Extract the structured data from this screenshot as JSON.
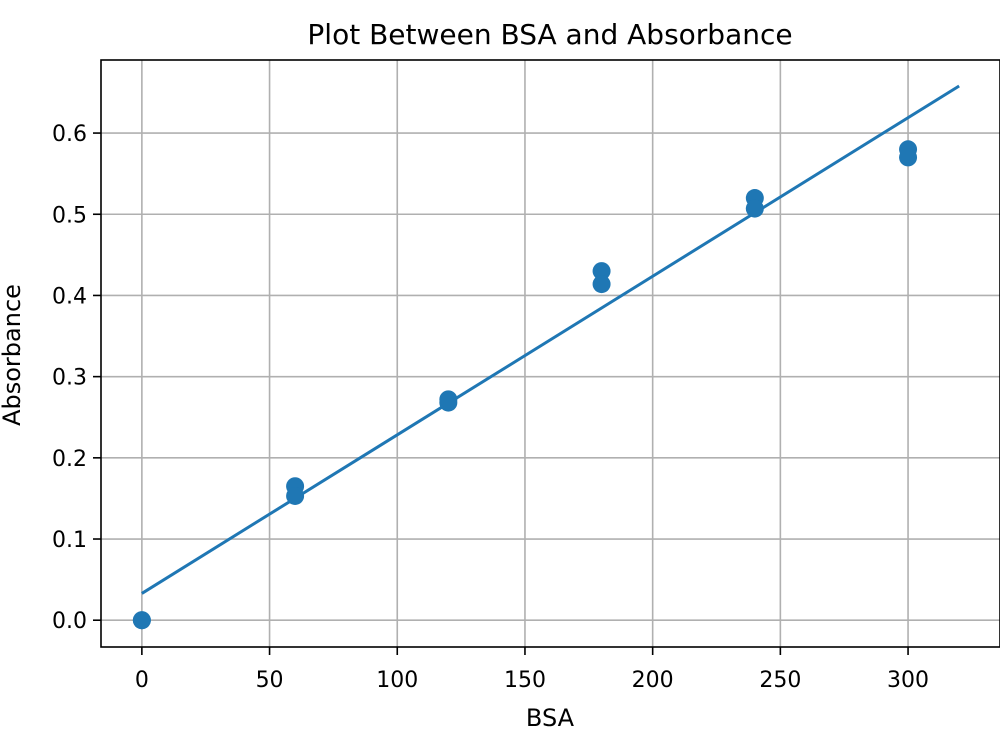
{
  "chart_data": {
    "type": "scatter",
    "title": "Plot Between BSA and Absorbance",
    "xlabel": "BSA",
    "ylabel": "Absorbance",
    "xlim": [
      -16,
      336
    ],
    "ylim": [
      -0.033,
      0.69
    ],
    "grid": true,
    "x_ticks": [
      0,
      50,
      100,
      150,
      200,
      250,
      300
    ],
    "y_ticks": [
      0.0,
      0.1,
      0.2,
      0.3,
      0.4,
      0.5,
      0.6
    ],
    "x_tick_labels": [
      "0",
      "50",
      "100",
      "150",
      "200",
      "250",
      "300"
    ],
    "y_tick_labels": [
      "0.0",
      "0.1",
      "0.2",
      "0.3",
      "0.4",
      "0.5",
      "0.6"
    ],
    "series": [
      {
        "kind": "scatter",
        "color": "#1f77b4",
        "points": [
          {
            "x": 0,
            "y": 0.0
          },
          {
            "x": 0,
            "y": 0.0
          },
          {
            "x": 60,
            "y": 0.165
          },
          {
            "x": 60,
            "y": 0.153
          },
          {
            "x": 120,
            "y": 0.272
          },
          {
            "x": 120,
            "y": 0.268
          },
          {
            "x": 180,
            "y": 0.43
          },
          {
            "x": 180,
            "y": 0.414
          },
          {
            "x": 240,
            "y": 0.52
          },
          {
            "x": 240,
            "y": 0.507
          },
          {
            "x": 300,
            "y": 0.58
          },
          {
            "x": 300,
            "y": 0.57
          }
        ]
      },
      {
        "kind": "line",
        "color": "#1f77b4",
        "x": [
          0,
          320
        ],
        "y": [
          0.033,
          0.658
        ]
      }
    ]
  }
}
